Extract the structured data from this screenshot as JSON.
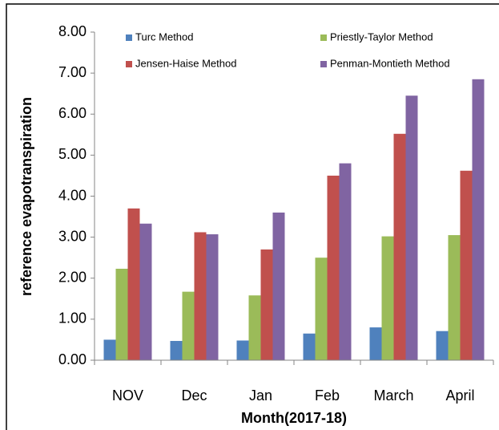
{
  "chart_data": {
    "type": "bar",
    "x_label": "Month(2017-18)",
    "y_label": "reference evapotranspiration",
    "categories": [
      "NOV",
      "Dec",
      "Jan",
      "Feb",
      "March",
      "April"
    ],
    "series": [
      {
        "name": "Turc Method",
        "color": "#4f81bd",
        "values": [
          0.5,
          0.47,
          0.48,
          0.65,
          0.8,
          0.71
        ]
      },
      {
        "name": "Priestly-Taylor Method",
        "color": "#9bbb59",
        "values": [
          2.23,
          1.67,
          1.58,
          2.5,
          3.02,
          3.05
        ]
      },
      {
        "name": "Jensen-Haise Method",
        "color": "#c0504d",
        "values": [
          3.7,
          3.12,
          2.7,
          4.5,
          5.52,
          4.62
        ]
      },
      {
        "name": "Penman-Montieth Method",
        "color": "#8064a2",
        "values": [
          3.33,
          3.07,
          3.6,
          4.8,
          6.45,
          6.85
        ]
      }
    ],
    "ylim": [
      0,
      8
    ],
    "yticks": [
      {
        "value": 0,
        "label": "0.00"
      },
      {
        "value": 1,
        "label": "1.00"
      },
      {
        "value": 2,
        "label": "2.00"
      },
      {
        "value": 3,
        "label": "3.00"
      },
      {
        "value": 4,
        "label": "4.00"
      },
      {
        "value": 5,
        "label": "5.00"
      },
      {
        "value": 6,
        "label": "6.00"
      },
      {
        "value": 7,
        "label": "7.00"
      },
      {
        "value": 8,
        "label": "8.00"
      }
    ]
  }
}
